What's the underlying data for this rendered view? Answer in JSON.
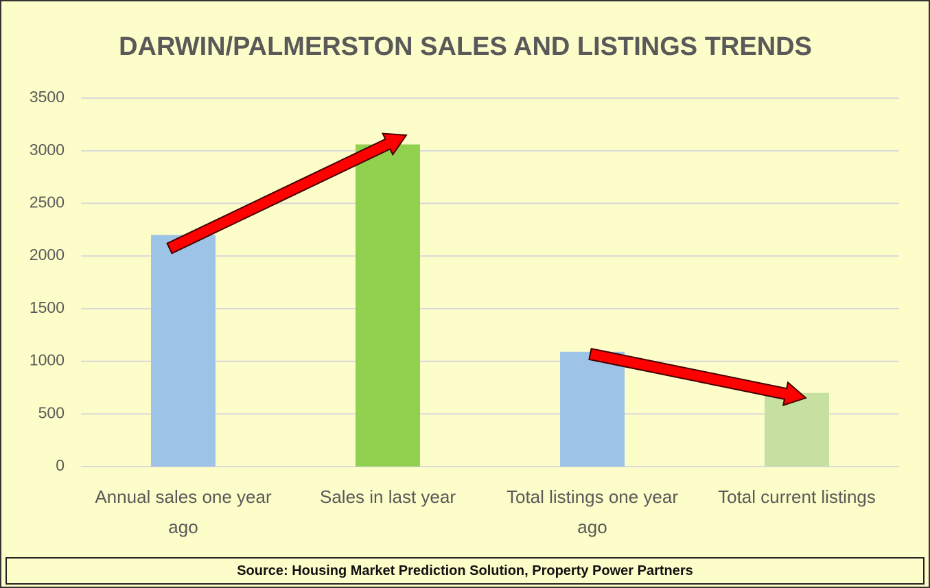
{
  "chart_data": {
    "type": "bar",
    "title": "DARWIN/PALMERSTON  SALES AND LISTINGS TRENDS",
    "categories": [
      "Annual sales one year ago",
      "Sales in last year",
      "Total listings one year ago",
      "Total current listings"
    ],
    "values": [
      2200,
      3060,
      1090,
      700
    ],
    "colors": [
      "#9dc3e6",
      "#92d050",
      "#9dc3e6",
      "#c5e0a0"
    ],
    "ylim": [
      0,
      3500
    ],
    "yticks": [
      0,
      500,
      1000,
      1500,
      2000,
      2500,
      3000,
      3500
    ],
    "grid": true,
    "source": "Source: Housing Market Prediction Solution, Property Power Partners"
  }
}
